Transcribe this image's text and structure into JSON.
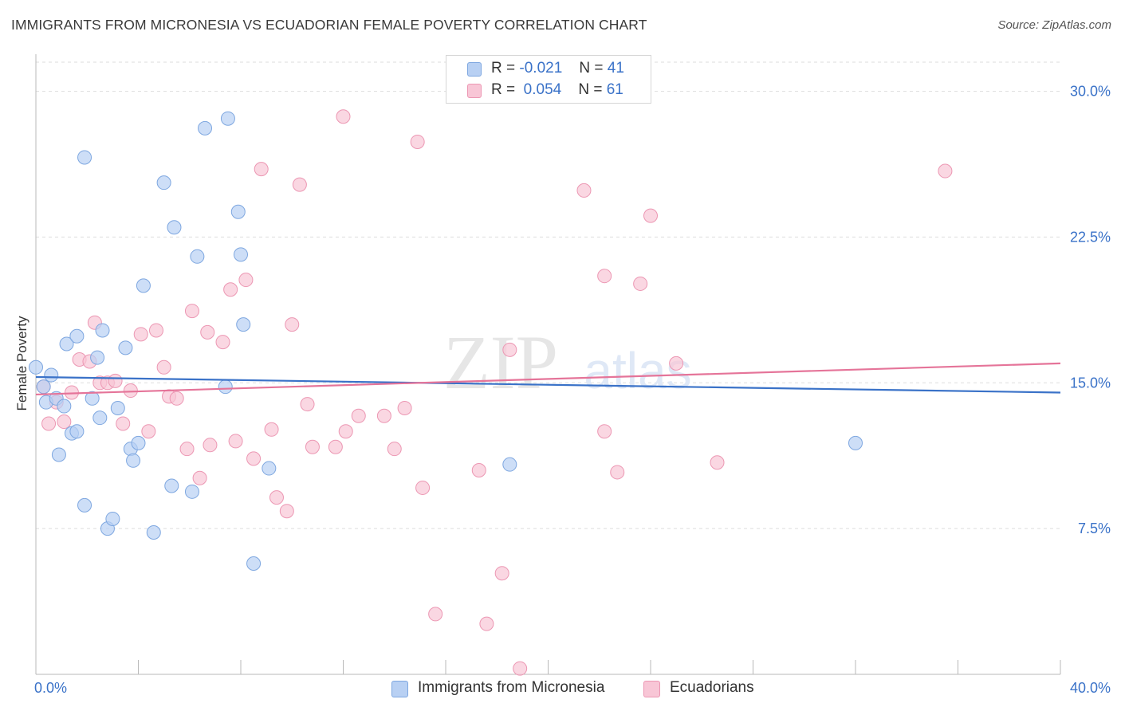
{
  "title": "IMMIGRANTS FROM MICRONESIA VS ECUADORIAN FEMALE POVERTY CORRELATION CHART",
  "source": "Source: ZipAtlas.com",
  "watermark": {
    "zip": "ZIP",
    "atlas": "atlas"
  },
  "legend": {
    "rows": [
      {
        "r_label": "R =",
        "r_value": "-0.021",
        "n_label": "N =",
        "n_value": "41"
      },
      {
        "r_label": "R =",
        "r_value": "0.054",
        "n_label": "N =",
        "n_value": "61"
      }
    ]
  },
  "colors": {
    "blue_fill": "#b8d0f3",
    "blue_stroke": "#7ea7e0",
    "blue_line": "#3a72c8",
    "pink_fill": "#f8c6d6",
    "pink_stroke": "#ec97b3",
    "pink_line": "#e57499",
    "tick_label": "#3a72c8",
    "grid": "#dedede"
  },
  "chart_data": {
    "type": "scatter",
    "title": "IMMIGRANTS FROM MICRONESIA VS ECUADORIAN FEMALE POVERTY CORRELATION CHART",
    "xlabel": "",
    "ylabel": "Female Poverty",
    "xlim": [
      0,
      40
    ],
    "ylim": [
      0,
      31.5
    ],
    "x_tick_labels": [
      "0.0%",
      "40.0%"
    ],
    "y_ticks": [
      7.5,
      15.0,
      22.5,
      30.0
    ],
    "y_tick_labels": [
      "7.5%",
      "15.0%",
      "22.5%",
      "30.0%"
    ],
    "grid": "horizontal dashed",
    "legend_position": "top-center",
    "series": [
      {
        "name": "Immigrants from Micronesia",
        "color": "#b8d0f3",
        "trend": {
          "x": [
            0,
            40
          ],
          "y": [
            15.3,
            14.5
          ]
        },
        "points": [
          [
            0.0,
            15.8
          ],
          [
            0.3,
            14.8
          ],
          [
            0.4,
            14.0
          ],
          [
            0.6,
            15.4
          ],
          [
            0.8,
            14.2
          ],
          [
            0.9,
            11.3
          ],
          [
            1.1,
            13.8
          ],
          [
            1.2,
            17.0
          ],
          [
            1.4,
            12.4
          ],
          [
            1.6,
            12.5
          ],
          [
            1.6,
            17.4
          ],
          [
            1.9,
            26.6
          ],
          [
            1.9,
            8.7
          ],
          [
            2.2,
            14.2
          ],
          [
            2.4,
            16.3
          ],
          [
            2.5,
            13.2
          ],
          [
            2.6,
            17.7
          ],
          [
            2.8,
            7.5
          ],
          [
            3.0,
            8.0
          ],
          [
            3.2,
            13.7
          ],
          [
            3.5,
            16.8
          ],
          [
            3.7,
            11.6
          ],
          [
            3.8,
            11.0
          ],
          [
            4.0,
            11.9
          ],
          [
            4.2,
            20.0
          ],
          [
            4.6,
            7.3
          ],
          [
            5.0,
            25.3
          ],
          [
            5.3,
            9.7
          ],
          [
            5.4,
            23.0
          ],
          [
            6.1,
            9.4
          ],
          [
            6.3,
            21.5
          ],
          [
            6.6,
            28.1
          ],
          [
            7.5,
            28.6
          ],
          [
            7.4,
            14.8
          ],
          [
            7.9,
            23.8
          ],
          [
            8.0,
            21.6
          ],
          [
            8.1,
            18.0
          ],
          [
            8.5,
            5.7
          ],
          [
            9.1,
            10.6
          ],
          [
            32.0,
            11.9
          ],
          [
            18.5,
            10.8
          ]
        ]
      },
      {
        "name": "Ecuadorians",
        "color": "#f8c6d6",
        "trend": {
          "x": [
            0,
            40
          ],
          "y": [
            14.4,
            16.0
          ]
        },
        "points": [
          [
            0.3,
            14.8
          ],
          [
            0.5,
            12.9
          ],
          [
            0.8,
            14.0
          ],
          [
            1.1,
            13.0
          ],
          [
            1.4,
            14.5
          ],
          [
            1.7,
            16.2
          ],
          [
            2.1,
            16.1
          ],
          [
            2.3,
            18.1
          ],
          [
            2.5,
            15.0
          ],
          [
            2.8,
            15.0
          ],
          [
            3.1,
            15.1
          ],
          [
            3.4,
            12.9
          ],
          [
            3.7,
            14.6
          ],
          [
            4.1,
            17.5
          ],
          [
            4.4,
            12.5
          ],
          [
            4.7,
            17.7
          ],
          [
            5.0,
            15.8
          ],
          [
            5.2,
            14.3
          ],
          [
            5.5,
            14.2
          ],
          [
            5.9,
            11.6
          ],
          [
            6.1,
            18.7
          ],
          [
            6.4,
            10.1
          ],
          [
            6.7,
            17.6
          ],
          [
            6.8,
            11.8
          ],
          [
            7.3,
            17.1
          ],
          [
            7.6,
            19.8
          ],
          [
            7.8,
            12.0
          ],
          [
            8.2,
            20.3
          ],
          [
            8.5,
            11.1
          ],
          [
            8.8,
            26.0
          ],
          [
            9.2,
            12.6
          ],
          [
            9.4,
            9.1
          ],
          [
            9.8,
            8.4
          ],
          [
            10.0,
            18.0
          ],
          [
            10.3,
            25.2
          ],
          [
            10.6,
            13.9
          ],
          [
            10.8,
            11.7
          ],
          [
            11.7,
            11.7
          ],
          [
            12.0,
            28.7
          ],
          [
            12.1,
            12.5
          ],
          [
            12.6,
            13.3
          ],
          [
            13.6,
            13.3
          ],
          [
            14.0,
            11.6
          ],
          [
            14.4,
            13.7
          ],
          [
            14.9,
            27.4
          ],
          [
            15.1,
            9.6
          ],
          [
            15.6,
            3.1
          ],
          [
            17.3,
            10.5
          ],
          [
            17.6,
            2.6
          ],
          [
            18.2,
            5.2
          ],
          [
            18.5,
            16.7
          ],
          [
            18.9,
            0.3
          ],
          [
            21.4,
            24.9
          ],
          [
            22.2,
            20.5
          ],
          [
            22.2,
            12.5
          ],
          [
            22.7,
            10.4
          ],
          [
            23.6,
            20.1
          ],
          [
            24.0,
            23.6
          ],
          [
            25.0,
            16.0
          ],
          [
            26.6,
            10.9
          ],
          [
            35.5,
            25.9
          ]
        ]
      }
    ]
  },
  "bottom_legend": [
    {
      "label": "Immigrants from Micronesia"
    },
    {
      "label": "Ecuadorians"
    }
  ]
}
